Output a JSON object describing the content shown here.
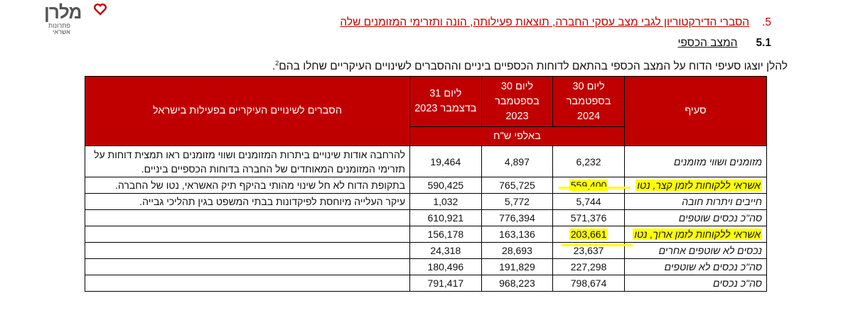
{
  "logo": {
    "name": "מלרן",
    "tagline_1": "פתרונות",
    "tagline_2": "אשראי"
  },
  "section5": {
    "number": "5.",
    "title": "הסברי הדירקטוריון לגבי מצב עסקי החברה, תוצאות פעילותה, הונה ותזרימי המזומנים שלה"
  },
  "section51": {
    "number": "5.1",
    "title": "המצב הכספי"
  },
  "intro": {
    "text": "להלן יוצגו סעיפי הדוח על המצב הכספי בהתאם לדוחות הכספיים ביניים וההסברים לשינויים העיקריים שחלו בהם",
    "footnote": "2",
    "end": "."
  },
  "table": {
    "headers": {
      "item": "סעיף",
      "col1": "ליום 30 בספטמבר 2024",
      "col2": "ליום 30 בספטמבר 2023",
      "col3": "ליום 31 בדצמבר 2023",
      "explanations": "הסברים לשינויים העיקריים בפעילות בישראל",
      "units": "באלפי ש\"ח"
    },
    "rows": [
      {
        "label": "מזומנים ושווי מזומנים",
        "col1": "6,232",
        "col2": "4,897",
        "col3": "19,464",
        "explanation": "להרחבה אודות שינויים ביתרות המזומנים ושווי מזומנים ראו תמצית דוחות על תזרימי המזומנים המאוחדים של החברה בדוחות הכספיים ביניים."
      },
      {
        "label": "אשראי ללקוחות לזמן קצר, נטו",
        "col1": "559,400",
        "col2": "765,725",
        "col3": "590,425",
        "explanation": "בתקופת הדוח לא חל שינוי מהותי בהיקף תיק האשראי, נטו של החברה."
      },
      {
        "label": "חייבים ויתרות חובה",
        "col1": "5,744",
        "col2": "5,772",
        "col3": "1,032",
        "explanation": "עיקר העלייה מיוחסת לפיקדונות בבתי המשפט בגין תהליכי גבייה."
      },
      {
        "label": "סה\"כ נכסים שוטפים",
        "col1": "571,376",
        "col2": "776,394",
        "col3": "610,921",
        "explanation": ""
      },
      {
        "label": "אשראי ללקוחות לזמן ארוך, נטו",
        "col1": "203,661",
        "col2": "163,136",
        "col3": "156,178",
        "explanation": ""
      },
      {
        "label": "נכסים לא שוטפים אחרים",
        "col1": "23,637",
        "col2": "28,693",
        "col3": "24,318",
        "explanation": ""
      },
      {
        "label": "סה\"כ נכסים לא שוטפים",
        "col1": "227,298",
        "col2": "191,829",
        "col3": "180,496",
        "explanation": ""
      },
      {
        "label": "סה\"כ נכסים",
        "col1": "798,674",
        "col2": "968,223",
        "col3": "791,417",
        "explanation": ""
      }
    ]
  },
  "colors": {
    "header_red": "#c00000",
    "highlight": "#ffff00"
  }
}
